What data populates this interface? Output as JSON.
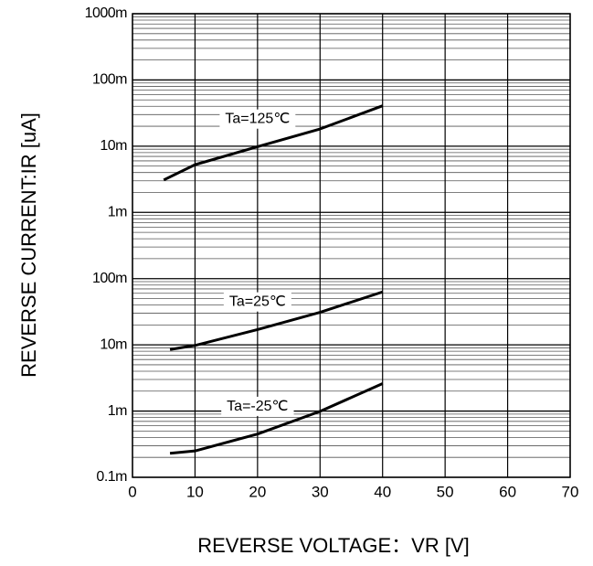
{
  "chart_data": {
    "type": "line",
    "xlabel": "REVERSE VOLTAGE：VR [V]",
    "ylabel": "REVERSE CURRENT:IR [uA]",
    "log_y": true,
    "grid": true,
    "color": "#000000",
    "xlim": [
      0,
      70
    ],
    "xticks": [
      0,
      10,
      20,
      30,
      40,
      50,
      60,
      70
    ],
    "ylim": [
      0.1,
      1000000
    ],
    "yticks": [
      {
        "value": 0.1,
        "label": "0.1m"
      },
      {
        "value": 1,
        "label": "1m"
      },
      {
        "value": 10,
        "label": "10m"
      },
      {
        "value": 100,
        "label": "100m"
      },
      {
        "value": 1000,
        "label": "1m"
      },
      {
        "value": 10000,
        "label": "10m"
      },
      {
        "value": 100000,
        "label": "100m"
      },
      {
        "value": 1000000,
        "label": "1000m"
      }
    ],
    "series": [
      {
        "name": "Ta=125℃",
        "x": [
          5,
          10,
          20,
          30,
          40
        ],
        "values": [
          3090,
          5250,
          9800,
          18200,
          40700
        ]
      },
      {
        "name": "Ta=25℃",
        "x": [
          6,
          10,
          20,
          30,
          40
        ],
        "values": [
          8.5,
          9.8,
          17,
          31,
          63
        ]
      },
      {
        "name": "Ta=-25℃",
        "x": [
          6,
          10,
          20,
          30,
          40
        ],
        "values": [
          0.23,
          0.25,
          0.45,
          0.99,
          2.6
        ]
      }
    ]
  }
}
